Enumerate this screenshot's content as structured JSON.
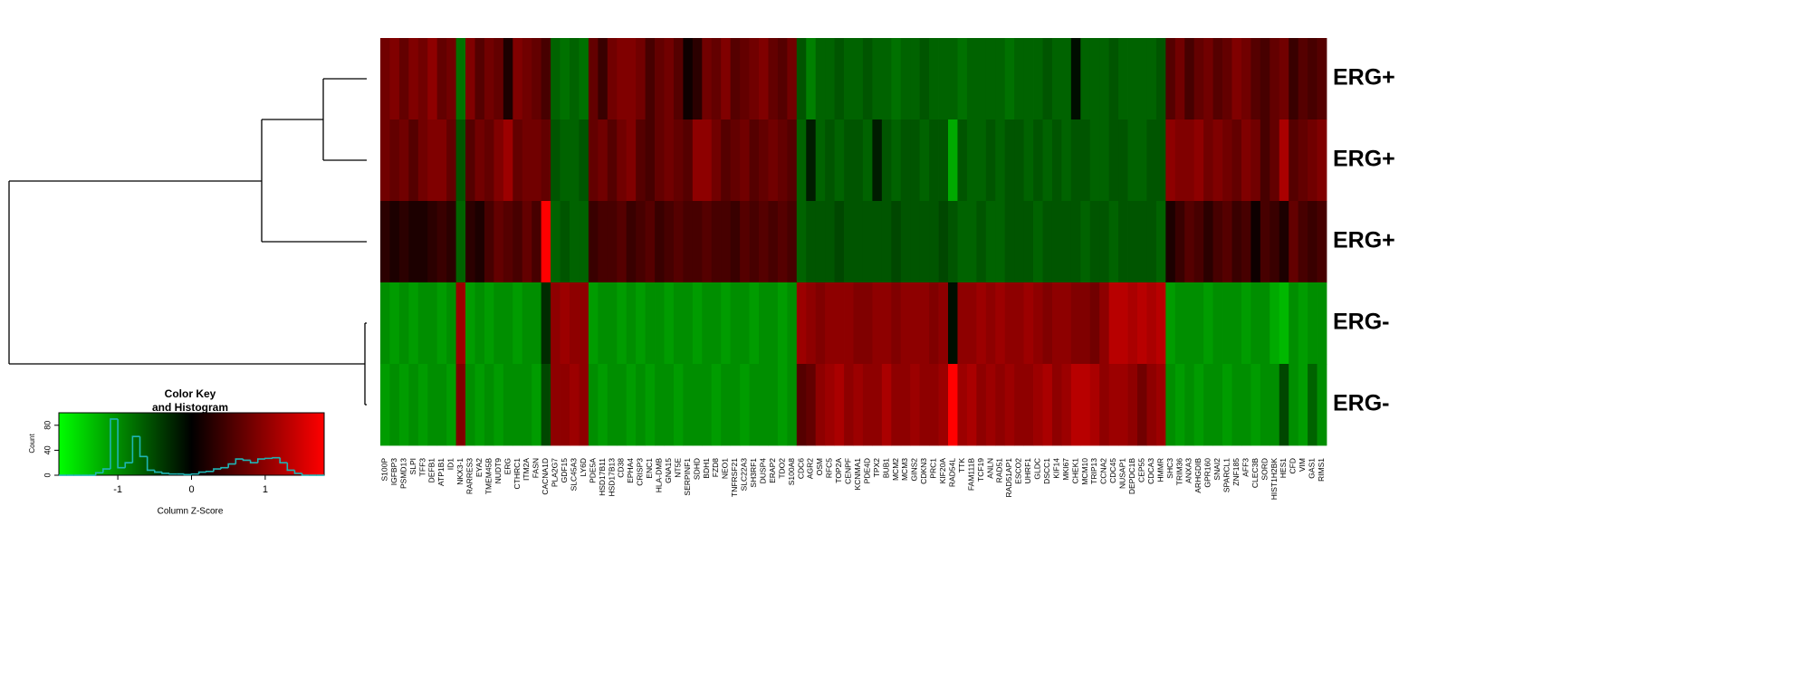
{
  "chart_data": {
    "type": "heatmap",
    "row_labels": [
      "ERG+",
      "ERG+",
      "ERG+",
      "ERG-",
      "ERG-"
    ],
    "column_labels": [
      "S100P",
      "IGFBP3",
      "PSMD13",
      "SLPI",
      "TFF3",
      "DEFB1",
      "ATP1B1",
      "ID1",
      "NKX3-1",
      "RARRES3",
      "EYA2",
      "TMEM45B",
      "NUDT9",
      "ERG",
      "CTHRC1",
      "ITM2A",
      "FASN",
      "CACNA1D",
      "PLA2G7",
      "GDF15",
      "SLC45A3",
      "LY6D",
      "PDE5A",
      "HSD17B11",
      "HSD17B13",
      "CD38",
      "EPHA4",
      "CRISP3",
      "ENC1",
      "HLA-DMB",
      "GNA15",
      "NT5E",
      "SERPINF1",
      "SDHD",
      "BDH1",
      "FZD8",
      "NEO1",
      "TNFRSF21",
      "SLC22A3",
      "SH3RF1",
      "DUSP4",
      "ERAP2",
      "TDO2",
      "S100A8",
      "CDC6",
      "AGR2",
      "OSM",
      "RFC5",
      "TOP2A",
      "CENPF",
      "KCNMA1",
      "PDE4D",
      "TPX2",
      "BUB1",
      "MCM2",
      "MCM3",
      "GINS2",
      "CDKN3",
      "PRC1",
      "KIF20A",
      "RAD54L",
      "TTK",
      "FAM111B",
      "TCF19",
      "ANLN",
      "RAD51",
      "RAD51AP1",
      "ESCO2",
      "UHRF1",
      "GLDC",
      "DSCC1",
      "KIF14",
      "MKI67",
      "CHEK1",
      "MCM10",
      "TRIP13",
      "CCNA2",
      "CDC45",
      "NUSAP1",
      "DEPDC1B",
      "CEP55",
      "CDCA3",
      "HMMR",
      "SHC3",
      "TRIM36",
      "ANXA3",
      "ARHGDIB",
      "GPR160",
      "SNAI2",
      "SPARCL1",
      "ZNF185",
      "AFF3",
      "CLEC3B",
      "SORD",
      "HIST1H2BK",
      "HES1",
      "CFD",
      "VIM",
      "GAS1",
      "RIMS1"
    ],
    "values": [
      [
        0.8,
        0.9,
        0.7,
        0.9,
        0.8,
        1.0,
        0.7,
        0.8,
        -0.8,
        0.9,
        0.6,
        0.8,
        0.7,
        0.2,
        0.9,
        0.8,
        0.7,
        0.5,
        -0.7,
        -0.8,
        -0.7,
        -0.8,
        0.7,
        0.4,
        0.8,
        0.9,
        0.9,
        0.8,
        0.5,
        0.7,
        0.8,
        0.6,
        0.1,
        0.3,
        0.8,
        0.7,
        0.9,
        0.6,
        0.7,
        0.8,
        0.9,
        0.7,
        0.6,
        0.8,
        -0.6,
        -0.9,
        -0.7,
        -0.7,
        -0.6,
        -0.7,
        -0.7,
        -0.6,
        -0.7,
        -0.7,
        -0.8,
        -0.7,
        -0.7,
        -0.6,
        -0.7,
        -0.7,
        -0.7,
        -0.8,
        -0.7,
        -0.7,
        -0.7,
        -0.7,
        -0.8,
        -0.7,
        -0.7,
        -0.7,
        -0.6,
        -0.7,
        -0.7,
        -0.1,
        -0.7,
        -0.7,
        -0.7,
        -0.6,
        -0.7,
        -0.7,
        -0.7,
        -0.7,
        -0.6,
        0.6,
        0.8,
        0.5,
        0.7,
        0.8,
        0.6,
        0.7,
        0.9,
        0.8,
        0.6,
        0.5,
        0.7,
        0.8,
        0.4,
        0.6,
        0.5,
        0.6
      ],
      [
        0.8,
        0.7,
        0.8,
        0.6,
        0.8,
        0.9,
        0.9,
        0.7,
        -0.6,
        0.6,
        0.8,
        0.7,
        0.9,
        1.1,
        0.7,
        0.8,
        0.8,
        0.7,
        -0.6,
        -0.7,
        -0.7,
        -0.6,
        0.7,
        0.8,
        0.6,
        0.8,
        0.9,
        0.6,
        0.5,
        0.7,
        0.8,
        0.7,
        0.6,
        1.0,
        1.0,
        0.8,
        0.6,
        0.7,
        0.8,
        0.6,
        0.7,
        0.8,
        0.7,
        0.6,
        -0.7,
        -0.2,
        -0.7,
        -0.6,
        -0.7,
        -0.6,
        -0.6,
        -0.7,
        -0.2,
        -0.6,
        -0.7,
        -0.6,
        -0.6,
        -0.7,
        -0.6,
        -0.6,
        -1.2,
        -0.6,
        -0.7,
        -0.7,
        -0.6,
        -0.7,
        -0.6,
        -0.6,
        -0.7,
        -0.6,
        -0.7,
        -0.6,
        -0.7,
        -0.6,
        -0.6,
        -0.7,
        -0.7,
        -0.6,
        -0.6,
        -0.7,
        -0.7,
        -0.6,
        -0.6,
        1.0,
        0.9,
        0.9,
        1.0,
        0.8,
        0.9,
        0.8,
        0.7,
        0.9,
        0.8,
        0.5,
        0.7,
        1.2,
        0.6,
        0.7,
        0.8,
        0.9
      ],
      [
        0.3,
        0.2,
        0.3,
        0.2,
        0.2,
        0.3,
        0.4,
        0.3,
        -0.7,
        0.3,
        0.2,
        0.5,
        0.7,
        0.6,
        0.5,
        0.7,
        0.5,
        1.8,
        -0.7,
        -0.6,
        -0.7,
        -0.7,
        0.4,
        0.5,
        0.5,
        0.6,
        0.4,
        0.5,
        0.6,
        0.4,
        0.5,
        0.6,
        0.5,
        0.5,
        0.6,
        0.5,
        0.5,
        0.4,
        0.6,
        0.5,
        0.6,
        0.5,
        0.6,
        0.5,
        -0.7,
        -0.6,
        -0.6,
        -0.6,
        -0.5,
        -0.6,
        -0.6,
        -0.6,
        -0.6,
        -0.6,
        -0.5,
        -0.6,
        -0.6,
        -0.6,
        -0.6,
        -0.5,
        -0.6,
        -0.7,
        -0.7,
        -0.6,
        -0.7,
        -0.7,
        -0.6,
        -0.6,
        -0.6,
        -0.7,
        -0.6,
        -0.6,
        -0.6,
        -0.6,
        -0.7,
        -0.6,
        -0.6,
        -0.7,
        -0.6,
        -0.6,
        -0.6,
        -0.6,
        -0.7,
        0.2,
        0.4,
        0.6,
        0.5,
        0.3,
        0.5,
        0.6,
        0.4,
        0.5,
        0.1,
        0.5,
        0.4,
        0.2,
        0.7,
        0.5,
        0.4,
        0.5
      ],
      [
        -1.0,
        -1.1,
        -1.0,
        -1.1,
        -1.0,
        -1.0,
        -1.1,
        -1.0,
        1.1,
        -1.1,
        -1.0,
        -1.1,
        -1.0,
        -1.0,
        -1.1,
        -1.0,
        -1.0,
        -0.3,
        1.0,
        1.1,
        1.0,
        1.0,
        -1.1,
        -1.0,
        -1.0,
        -1.1,
        -1.0,
        -1.1,
        -1.0,
        -1.0,
        -1.1,
        -1.0,
        -1.0,
        -1.1,
        -1.0,
        -1.0,
        -1.1,
        -1.0,
        -1.0,
        -1.1,
        -1.0,
        -1.0,
        -1.1,
        -1.0,
        1.1,
        1.0,
        0.9,
        1.0,
        1.0,
        1.0,
        0.9,
        0.9,
        1.0,
        1.0,
        0.9,
        1.0,
        1.0,
        1.0,
        0.9,
        1.0,
        -0.1,
        1.0,
        1.0,
        1.1,
        1.0,
        1.1,
        1.0,
        1.0,
        1.1,
        1.0,
        0.9,
        1.0,
        1.0,
        0.9,
        0.9,
        0.8,
        1.0,
        1.3,
        1.3,
        1.2,
        1.3,
        1.2,
        1.3,
        -1.1,
        -1.0,
        -1.0,
        -1.0,
        -1.1,
        -1.0,
        -1.0,
        -1.0,
        -1.1,
        -1.0,
        -1.0,
        -1.2,
        -1.3,
        -1.0,
        -1.1,
        -1.0,
        -1.0
      ],
      [
        -1.1,
        -1.0,
        -1.1,
        -1.0,
        -1.1,
        -1.0,
        -1.0,
        -1.1,
        0.9,
        -1.0,
        -1.1,
        -1.0,
        -1.1,
        -1.0,
        -1.0,
        -1.0,
        -1.1,
        -0.5,
        1.0,
        1.0,
        1.1,
        1.0,
        -1.0,
        -1.1,
        -1.0,
        -1.0,
        -1.1,
        -1.0,
        -1.1,
        -1.0,
        -1.0,
        -1.1,
        -1.0,
        -1.0,
        -1.0,
        -1.1,
        -1.0,
        -1.0,
        -1.1,
        -1.0,
        -1.0,
        -1.0,
        -1.1,
        -1.0,
        0.6,
        0.7,
        1.0,
        1.1,
        1.2,
        1.0,
        1.1,
        1.0,
        1.0,
        1.2,
        1.0,
        1.0,
        1.1,
        1.0,
        1.0,
        1.1,
        1.8,
        1.1,
        1.2,
        1.0,
        1.1,
        1.0,
        1.1,
        1.0,
        1.0,
        1.1,
        1.2,
        1.0,
        1.1,
        1.3,
        1.3,
        1.2,
        1.0,
        1.1,
        1.1,
        1.0,
        0.8,
        1.0,
        1.1,
        -1.0,
        -1.1,
        -1.0,
        -1.1,
        -1.0,
        -1.0,
        -1.1,
        -1.0,
        -1.0,
        -1.1,
        -1.0,
        -1.0,
        -0.5,
        -1.0,
        -1.1,
        -0.7,
        -1.0
      ]
    ],
    "colors": [
      "#00ff00",
      "#000000",
      "#ff0000"
    ],
    "zlim": [
      -1.8,
      1.8
    ],
    "color_key": {
      "type": "histogram",
      "title": [
        "Color Key",
        "and Histogram"
      ],
      "x_label": "Column Z-Score",
      "y_label": "Count",
      "bins": [
        -1.8,
        -1.7,
        -1.6,
        -1.5,
        -1.4,
        -1.3,
        -1.2,
        -1.1,
        -1.0,
        -0.9,
        -0.8,
        -0.7,
        -0.6,
        -0.5,
        -0.4,
        -0.3,
        -0.2,
        -0.1,
        0,
        0.1,
        0.2,
        0.3,
        0.4,
        0.5,
        0.6,
        0.7,
        0.8,
        0.9,
        1.0,
        1.1,
        1.2,
        1.3,
        1.4,
        1.5,
        1.6,
        1.7,
        1.8
      ],
      "counts": [
        0,
        0,
        0,
        0,
        0,
        4,
        10,
        90,
        12,
        20,
        62,
        30,
        8,
        5,
        3,
        2,
        2,
        1,
        2,
        5,
        6,
        10,
        12,
        18,
        26,
        24,
        20,
        26,
        27,
        28,
        20,
        8,
        3,
        0,
        0,
        0
      ],
      "color": "#1fb5b5",
      "xlim": [
        -1.8,
        1.8
      ],
      "ylim": [
        0,
        100
      ],
      "xticks": [
        -1,
        0,
        1
      ],
      "yticks": [
        0,
        40,
        80
      ]
    }
  }
}
